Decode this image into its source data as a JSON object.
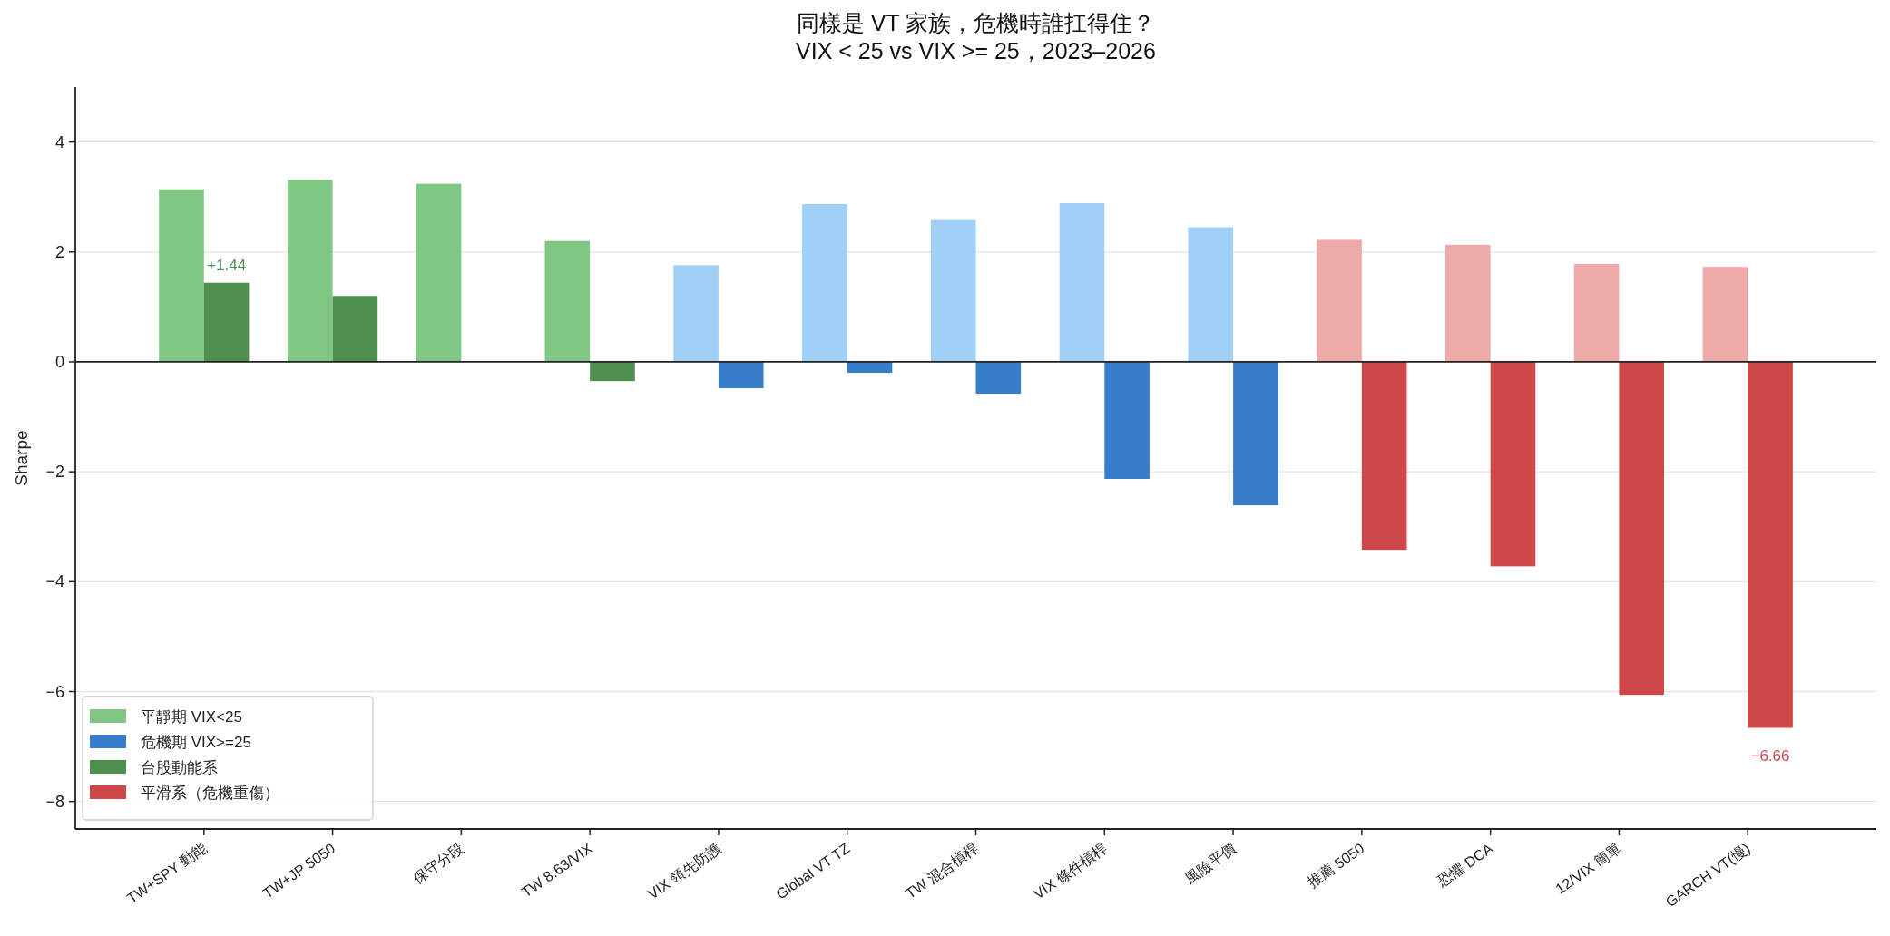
{
  "chart_data": {
    "type": "bar",
    "title": "同樣是 VT 家族，危機時誰扛得住？\nVIX < 25 vs VIX >= 25，2023–2026",
    "ylabel": "Sharpe",
    "categories": [
      "TW+SPY 動能",
      "TW+JP 5050",
      "保守分段",
      "TW 8.63/VIX",
      "VIX 領先防護",
      "Global VT TZ",
      "TW 混合槓桿",
      "VIX 條件槓桿",
      "風險平價",
      "推薦 5050",
      "恐懼 DCA",
      "12/VIX 簡單",
      "GARCH VT(慢)"
    ],
    "series": [
      {
        "name": "平靜期 VIX<25",
        "color": "#81c784",
        "colors": [
          "#81c784",
          "#81c784",
          "#81c784",
          "#81c784",
          "#a1d0f7",
          "#a1d0f7",
          "#a1d0f7",
          "#a1d0f7",
          "#a1d0f7",
          "#f0a9a9",
          "#f0a9a9",
          "#f0a9a9",
          "#f0a9a9"
        ],
        "values": [
          3.14,
          3.31,
          3.24,
          2.2,
          1.76,
          2.87,
          2.58,
          2.89,
          2.45,
          2.22,
          2.13,
          1.78,
          1.73
        ]
      },
      {
        "name": "危機期 VIX>=25",
        "color": "#387dc9",
        "values": [
          null,
          null,
          null,
          null,
          -0.48,
          -0.2,
          -0.58,
          -2.13,
          -2.61,
          null,
          null,
          null,
          null
        ]
      },
      {
        "name": "台股動能系",
        "color": "#4e8f50",
        "values": [
          1.44,
          1.2,
          null,
          -0.35,
          null,
          null,
          null,
          null,
          null,
          null,
          null,
          null,
          null
        ],
        "value_labels": [
          "+1.44",
          null,
          null,
          null,
          null,
          null,
          null,
          null,
          null,
          null,
          null,
          null,
          null
        ]
      },
      {
        "name": "平滑系（危機重傷）",
        "color": "#cf4849",
        "values": [
          null,
          null,
          null,
          null,
          null,
          null,
          null,
          null,
          null,
          -3.42,
          -3.72,
          -6.06,
          -6.66
        ],
        "value_labels": [
          null,
          null,
          null,
          null,
          null,
          null,
          null,
          null,
          null,
          null,
          null,
          null,
          "−6.66"
        ]
      }
    ],
    "ylim": [
      -8.5,
      5
    ],
    "yticks": [
      {
        "value": -8,
        "label": "−8"
      },
      {
        "value": -6,
        "label": "−6"
      },
      {
        "value": -4,
        "label": "−4"
      },
      {
        "value": -2,
        "label": "−2"
      },
      0,
      2,
      4
    ],
    "ref_lines": [
      {
        "axis": "y",
        "value": 0,
        "color": "#222222"
      }
    ],
    "grid": "y",
    "legend": "bottom left"
  }
}
